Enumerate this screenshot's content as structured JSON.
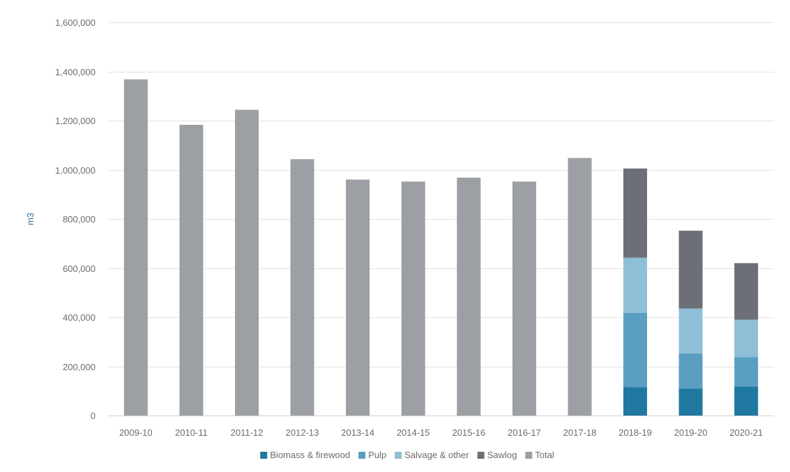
{
  "chart_data": {
    "type": "bar",
    "stacked": true,
    "title": "",
    "xlabel": "",
    "ylabel": "m3",
    "ylim": [
      0,
      1600000
    ],
    "yticks": [
      0,
      200000,
      400000,
      600000,
      800000,
      1000000,
      1200000,
      1400000,
      1600000
    ],
    "ytick_labels": [
      "0",
      "200,000",
      "400,000",
      "600,000",
      "800,000",
      "1,000,000",
      "1,200,000",
      "1,400,000",
      "1,600,000"
    ],
    "grid": true,
    "legend_position": "bottom",
    "categories": [
      "2009-10",
      "2010-11",
      "2011-12",
      "2012-13",
      "2013-14",
      "2014-15",
      "2015-16",
      "2016-17",
      "2017-18",
      "2018-19",
      "2019-20",
      "2020-21"
    ],
    "series": [
      {
        "name": "Biomass & firewood",
        "color": "#1f78a0",
        "values": [
          0,
          0,
          0,
          0,
          0,
          0,
          0,
          0,
          0,
          115000,
          110000,
          118000
        ]
      },
      {
        "name": "Pulp",
        "color": "#5a9fc2",
        "values": [
          0,
          0,
          0,
          0,
          0,
          0,
          0,
          0,
          0,
          302000,
          143000,
          120000
        ]
      },
      {
        "name": "Salvage & other",
        "color": "#8fbfd6",
        "values": [
          0,
          0,
          0,
          0,
          0,
          0,
          0,
          0,
          0,
          225000,
          182000,
          152000
        ]
      },
      {
        "name": "Sawlog",
        "color": "#6c7076",
        "values": [
          0,
          0,
          0,
          0,
          0,
          0,
          0,
          0,
          0,
          363000,
          317000,
          230000
        ]
      },
      {
        "name": "Total",
        "color": "#9c9fa3",
        "values": [
          1368000,
          1183000,
          1244000,
          1043000,
          960000,
          952000,
          968000,
          952000,
          1048000,
          0,
          0,
          0
        ]
      }
    ]
  }
}
